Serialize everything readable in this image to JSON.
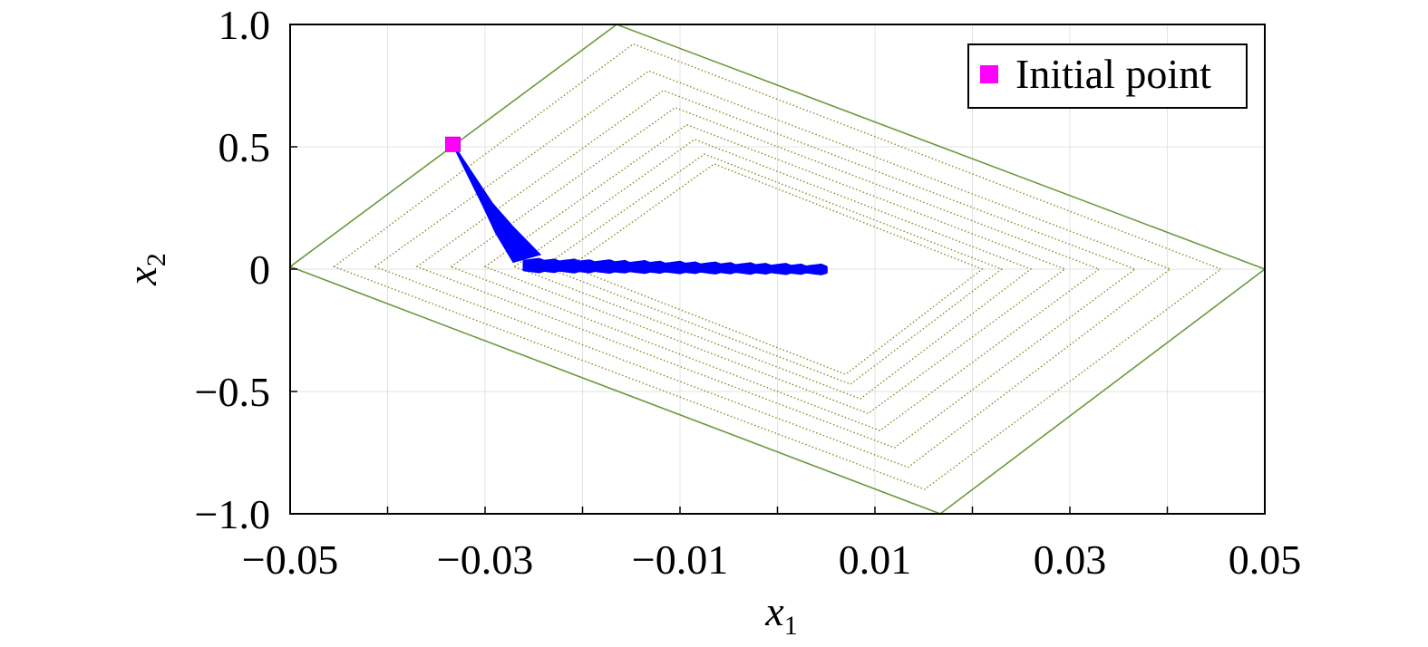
{
  "chart_data": {
    "type": "scatter",
    "xlabel": "x",
    "xlabel_sub": "1",
    "ylabel": "x",
    "ylabel_sub": "2",
    "xlim": [
      -0.05,
      0.05
    ],
    "ylim": [
      -1.0,
      1.0
    ],
    "x_ticks": [
      -0.05,
      -0.03,
      -0.01,
      0.01,
      0.03,
      0.05
    ],
    "x_tick_labels": [
      "−0.05",
      "−0.03",
      "−0.01",
      "0.01",
      "0.03",
      "0.05"
    ],
    "x_grid": [
      -0.05,
      -0.04,
      -0.03,
      -0.02,
      -0.01,
      0.0,
      0.01,
      0.02,
      0.03,
      0.04,
      0.05
    ],
    "y_ticks": [
      1.0,
      0.5,
      0,
      -0.5,
      -1.0
    ],
    "y_tick_labels": [
      "1.0",
      "0.5",
      "0",
      "−0.5",
      "−1.0"
    ],
    "grid": true,
    "legend": {
      "position": "top-right",
      "entries": [
        {
          "label": "Initial point",
          "marker": "square",
          "color": "#ff00ff"
        }
      ]
    },
    "initial_point": {
      "x": -0.0333,
      "y": 0.51
    },
    "trajectory": {
      "color": "#0000ff",
      "path": [
        {
          "x": -0.0333,
          "y": 0.51
        },
        {
          "x": -0.03,
          "y": 0.26
        },
        {
          "x": -0.0285,
          "y": 0.15
        },
        {
          "x": -0.0265,
          "y": 0.03
        }
      ],
      "band_x": [
        -0.026,
        0.005
      ],
      "band_y_center": [
        0.015,
        -0.002
      ],
      "band_half_width": [
        0.022,
        0.014
      ]
    },
    "outer_polygon": {
      "color": "#6a9a3a",
      "vertices": [
        {
          "x": -0.05,
          "y": 0.01
        },
        {
          "x": -0.0165,
          "y": 1.0
        },
        {
          "x": 0.05,
          "y": 0.0
        },
        {
          "x": 0.0167,
          "y": -1.0
        }
      ]
    },
    "inner_polygons": {
      "color": "#8a8a2a",
      "style": "dotted",
      "sets": [
        [
          {
            "x": -0.0455,
            "y": 0.01
          },
          {
            "x": -0.0148,
            "y": 0.92
          },
          {
            "x": 0.0455,
            "y": 0.0
          },
          {
            "x": 0.0151,
            "y": -0.9
          }
        ],
        [
          {
            "x": -0.0413,
            "y": 0.01
          },
          {
            "x": -0.0132,
            "y": 0.81
          },
          {
            "x": 0.0403,
            "y": 0.0
          },
          {
            "x": 0.0134,
            "y": -0.81
          }
        ],
        [
          {
            "x": -0.037,
            "y": 0.01
          },
          {
            "x": -0.0117,
            "y": 0.73
          },
          {
            "x": 0.0367,
            "y": 0.0
          },
          {
            "x": 0.012,
            "y": -0.73
          }
        ],
        [
          {
            "x": -0.0335,
            "y": 0.01
          },
          {
            "x": -0.0105,
            "y": 0.66
          },
          {
            "x": 0.033,
            "y": 0.0
          },
          {
            "x": 0.0105,
            "y": -0.66
          }
        ],
        [
          {
            "x": -0.03,
            "y": 0.01
          },
          {
            "x": -0.0093,
            "y": 0.59
          },
          {
            "x": 0.0295,
            "y": 0.0
          },
          {
            "x": 0.0093,
            "y": -0.59
          }
        ],
        [
          {
            "x": -0.027,
            "y": 0.01
          },
          {
            "x": -0.0085,
            "y": 0.53
          },
          {
            "x": 0.026,
            "y": 0.0
          },
          {
            "x": 0.0085,
            "y": -0.53
          }
        ],
        [
          {
            "x": -0.024,
            "y": 0.01
          },
          {
            "x": -0.0075,
            "y": 0.47
          },
          {
            "x": 0.023,
            "y": 0.0
          },
          {
            "x": 0.0075,
            "y": -0.47
          }
        ],
        [
          {
            "x": -0.0213,
            "y": 0.01
          },
          {
            "x": -0.0065,
            "y": 0.43
          },
          {
            "x": 0.021,
            "y": 0.0
          },
          {
            "x": 0.007,
            "y": -0.43
          }
        ]
      ]
    }
  }
}
